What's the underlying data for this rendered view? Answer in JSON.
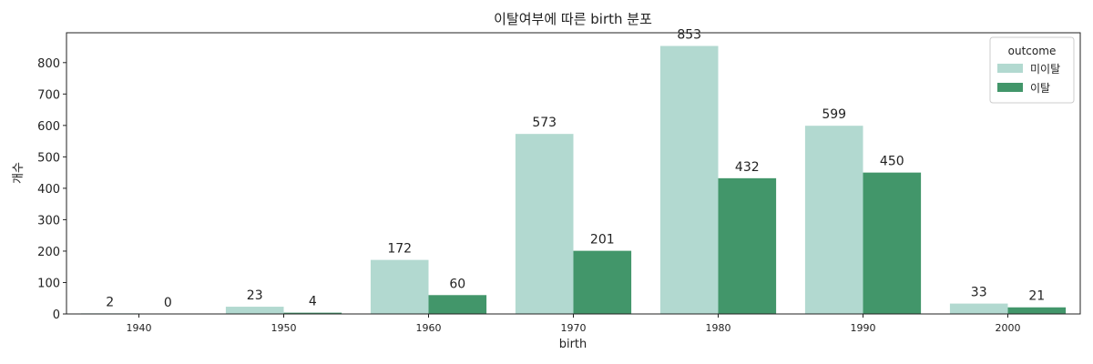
{
  "chart_data": {
    "type": "bar",
    "title": "이탈여부에 따른 birth 분포",
    "xlabel": "birth",
    "ylabel": "개수",
    "categories": [
      "1940",
      "1950",
      "1960",
      "1970",
      "1980",
      "1990",
      "2000"
    ],
    "yticks": [
      0,
      100,
      200,
      300,
      400,
      500,
      600,
      700,
      800
    ],
    "ylim": [
      0,
      895
    ],
    "grid": false,
    "legend": {
      "title": "outcome",
      "placement": "top-right"
    },
    "series": [
      {
        "name": "미이탈",
        "color": "#b2d9d0",
        "values": [
          2,
          23,
          172,
          573,
          853,
          599,
          33
        ]
      },
      {
        "name": "이탈",
        "color": "#42966a",
        "values": [
          0,
          4,
          60,
          201,
          432,
          450,
          21
        ]
      }
    ]
  }
}
